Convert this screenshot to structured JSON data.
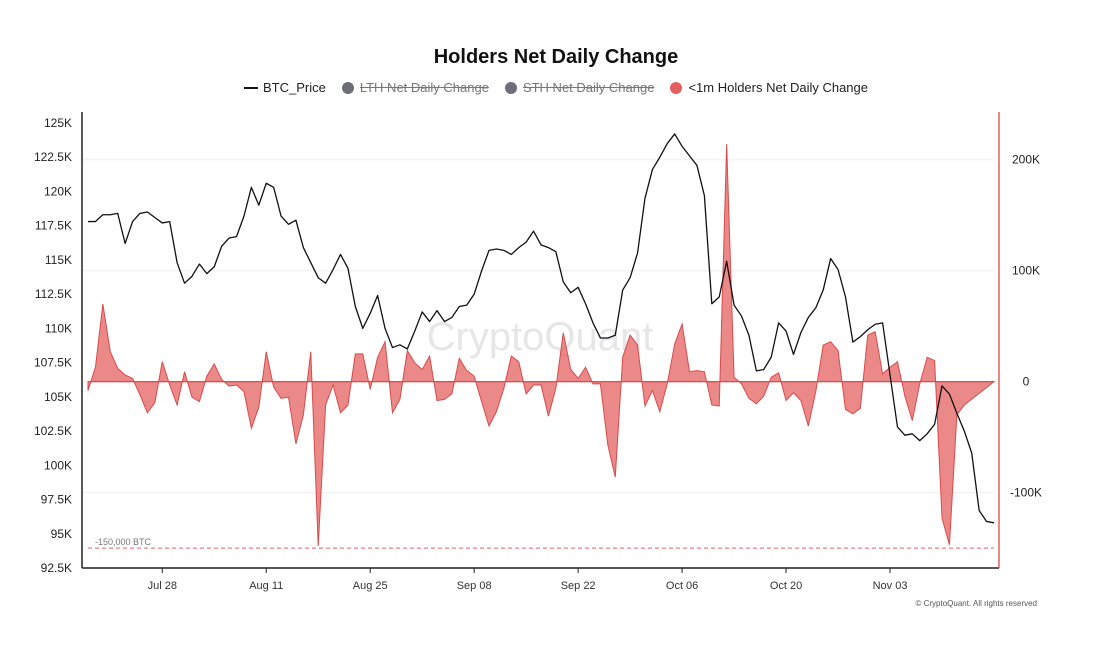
{
  "chart_data": {
    "type": "line",
    "title": "Holders Net Daily Change",
    "legend": [
      {
        "name": "BTC_Price",
        "style": "line",
        "color": "#111111",
        "hidden": false
      },
      {
        "name": "LTH Net Daily Change",
        "style": "dot",
        "color": "#6e6e78",
        "hidden": true
      },
      {
        "name": "STH Net Daily Change",
        "style": "dot",
        "color": "#6e6e78",
        "hidden": true
      },
      {
        "name": "<1m Holders Net Daily Change",
        "style": "dot",
        "color": "#e46060",
        "hidden": false
      }
    ],
    "legend_position": "top-center",
    "x_start": "2025-07-18",
    "x_ticks": [
      "Jul 28",
      "Aug 11",
      "Aug 25",
      "Sep 08",
      "Sep 22",
      "Oct 06",
      "Oct 20",
      "Nov 03"
    ],
    "left_axis": {
      "ticks": [
        "125K",
        "122.5K",
        "120K",
        "117.5K",
        "115K",
        "112.5K",
        "110K",
        "107.5K",
        "105K",
        "102.5K",
        "100K",
        "97.5K",
        "95K",
        "92.5K"
      ],
      "ylim": [
        92500,
        125000
      ]
    },
    "right_axis": {
      "ticks": [
        "200K",
        "100K",
        "0",
        "-100K"
      ],
      "ylim": [
        -167000,
        234000
      ]
    },
    "reference_line": {
      "value": -150000,
      "label": "-150,000 BTC",
      "color": "#e46060"
    },
    "series": [
      {
        "name": "BTC_Price",
        "axis": "left",
        "color": "#111111",
        "values": [
          117800,
          117800,
          118300,
          118300,
          118400,
          116200,
          117800,
          118400,
          118500,
          118100,
          117700,
          117800,
          114800,
          113300,
          113800,
          114700,
          114000,
          114500,
          116000,
          116600,
          116700,
          118200,
          120300,
          119000,
          120600,
          120300,
          118200,
          117600,
          117900,
          115900,
          114800,
          113700,
          113300,
          114300,
          115400,
          114400,
          111600,
          110000,
          111100,
          112400,
          110000,
          108600,
          108800,
          108500,
          109800,
          111200,
          110500,
          111300,
          110500,
          110800,
          111600,
          111700,
          112500,
          114200,
          115700,
          115800,
          115700,
          115400,
          115900,
          116300,
          117100,
          116100,
          115900,
          115600,
          113400,
          112600,
          113000,
          111800,
          110400,
          109300,
          109300,
          109500,
          112800,
          113700,
          115500,
          119500,
          121600,
          122500,
          123500,
          124200,
          123300,
          122600,
          121900,
          119700,
          111800,
          112300,
          114900,
          111700,
          110900,
          109500,
          106900,
          107000,
          107900,
          110400,
          109800,
          108100,
          109700,
          110800,
          111500,
          112800,
          115100,
          114300,
          112300,
          109000,
          109400,
          109900,
          110300,
          110400,
          106600,
          102800,
          102200,
          102300,
          101800,
          102300,
          103000,
          105800,
          105200,
          103800,
          102500,
          100900,
          96700,
          95900,
          95800
        ]
      },
      {
        "name": "<1m Holders Net Daily Change",
        "axis": "right",
        "color": "#e46060",
        "values": [
          -8000,
          13000,
          70000,
          27000,
          12000,
          6000,
          3000,
          -12000,
          -28000,
          -19000,
          18000,
          -3000,
          -21000,
          9000,
          -14000,
          -18000,
          5000,
          16000,
          2000,
          -4000,
          -3000,
          -9000,
          -42000,
          -23000,
          27000,
          -5000,
          -15000,
          -14000,
          -56000,
          -30000,
          27000,
          -148000,
          -21000,
          -3000,
          -28000,
          -21000,
          25000,
          25000,
          -7000,
          22000,
          36000,
          -28000,
          -16000,
          28000,
          17000,
          11000,
          23000,
          -17000,
          -16000,
          -11000,
          21000,
          10000,
          5000,
          -18000,
          -40000,
          -27000,
          -6000,
          23000,
          18000,
          -11000,
          -3000,
          -3000,
          -31000,
          -6000,
          44000,
          11000,
          3000,
          13000,
          -2000,
          -2000,
          -57000,
          -86000,
          22000,
          42000,
          33000,
          -22000,
          -8000,
          -27000,
          -2000,
          34000,
          52000,
          9000,
          10000,
          9000,
          -21000,
          -22000,
          214000,
          4000,
          -2000,
          -15000,
          -20000,
          -13000,
          4000,
          8000,
          -17000,
          -10000,
          -17000,
          -40000,
          -9000,
          33000,
          36000,
          28000,
          -25000,
          -29000,
          -24000,
          42000,
          45000,
          7000,
          13000,
          18000,
          -13000,
          -35000,
          -2000,
          22000,
          19000,
          -123000,
          -147000,
          -30000,
          -21000
        ]
      }
    ],
    "annotations": [
      "-150,000 BTC"
    ],
    "watermark": "CryptoQuant",
    "credit": "© CryptoQuant. All rights reserved"
  }
}
